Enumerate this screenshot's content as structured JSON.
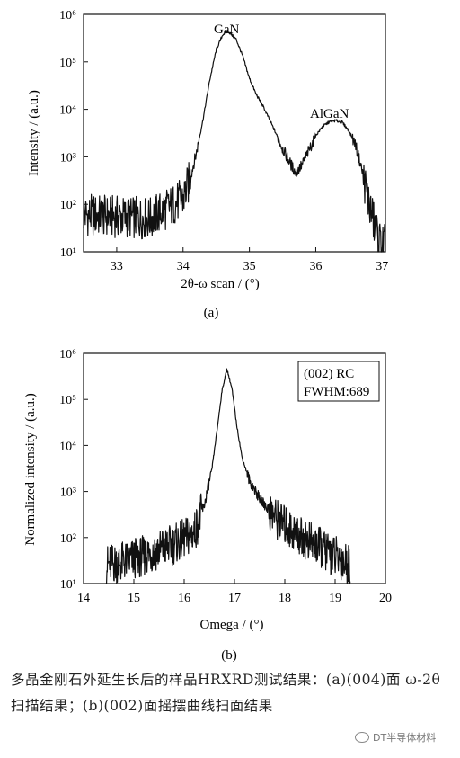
{
  "caption": "多晶金刚石外延生长后的样品HRXRD测试结果：(a)(004)面 ω-2θ扫描结果；(b)(002)面摇摆曲线扫面结果",
  "watermark": "DT半导体材料",
  "chart_data": [
    {
      "id": "a",
      "type": "line",
      "panel_label": "(a)",
      "xlabel": "2θ-ω scan / (°)",
      "ylabel": "Intensity / (a.u.)",
      "xlim": [
        32.5,
        37.05
      ],
      "ylim": [
        10,
        1000000
      ],
      "yscale": "log",
      "xticks": [
        33,
        34,
        35,
        36,
        37
      ],
      "yticks": [
        10,
        100,
        1000,
        10000,
        100000,
        1000000
      ],
      "annotations": [
        "GaN",
        "AlGaN"
      ],
      "series": [
        {
          "x": [
            32.5,
            33.0,
            33.5,
            34.0,
            34.1,
            34.2,
            34.3,
            34.4,
            34.5,
            34.6,
            34.68,
            34.8,
            34.9,
            35.0,
            35.1,
            35.2,
            35.3,
            35.4,
            35.5,
            35.6,
            35.7,
            35.8,
            35.9,
            36.0,
            36.1,
            36.2,
            36.3,
            36.4,
            36.5,
            36.6,
            36.7,
            36.8,
            36.9,
            37.0,
            37.05
          ],
          "y": [
            60,
            55,
            50,
            130,
            320,
            1200,
            6000,
            40000,
            180000,
            380000,
            440000,
            300000,
            130000,
            45000,
            21000,
            12000,
            6200,
            3100,
            1500,
            800,
            450,
            700,
            1400,
            2800,
            4300,
            5400,
            5800,
            5300,
            3500,
            1800,
            500,
            110,
            30,
            12,
            20
          ]
        }
      ]
    },
    {
      "id": "b",
      "type": "line",
      "panel_label": "(b)",
      "xlabel": "Omega / (°)",
      "ylabel": "Normalized intensity / (a.u.)",
      "xlim": [
        14,
        20
      ],
      "ylim": [
        10,
        1000000
      ],
      "yscale": "log",
      "xticks": [
        14,
        15,
        16,
        17,
        18,
        19,
        20
      ],
      "yticks": [
        10,
        100,
        1000,
        10000,
        100000,
        1000000
      ],
      "legend_lines": [
        "(002) RC",
        "FWHM:689"
      ],
      "legend_position": "top-right",
      "series": [
        {
          "x": [
            14.45,
            14.8,
            15.2,
            15.6,
            15.9,
            16.2,
            16.4,
            16.55,
            16.65,
            16.75,
            16.85,
            16.95,
            17.05,
            17.15,
            17.3,
            17.5,
            17.8,
            18.1,
            18.5,
            18.9,
            19.3
          ],
          "y": [
            25,
            30,
            40,
            60,
            80,
            130,
            500,
            3000,
            20000,
            150000,
            460000,
            170000,
            25000,
            5500,
            1700,
            700,
            280,
            150,
            80,
            45,
            25
          ]
        }
      ]
    }
  ]
}
